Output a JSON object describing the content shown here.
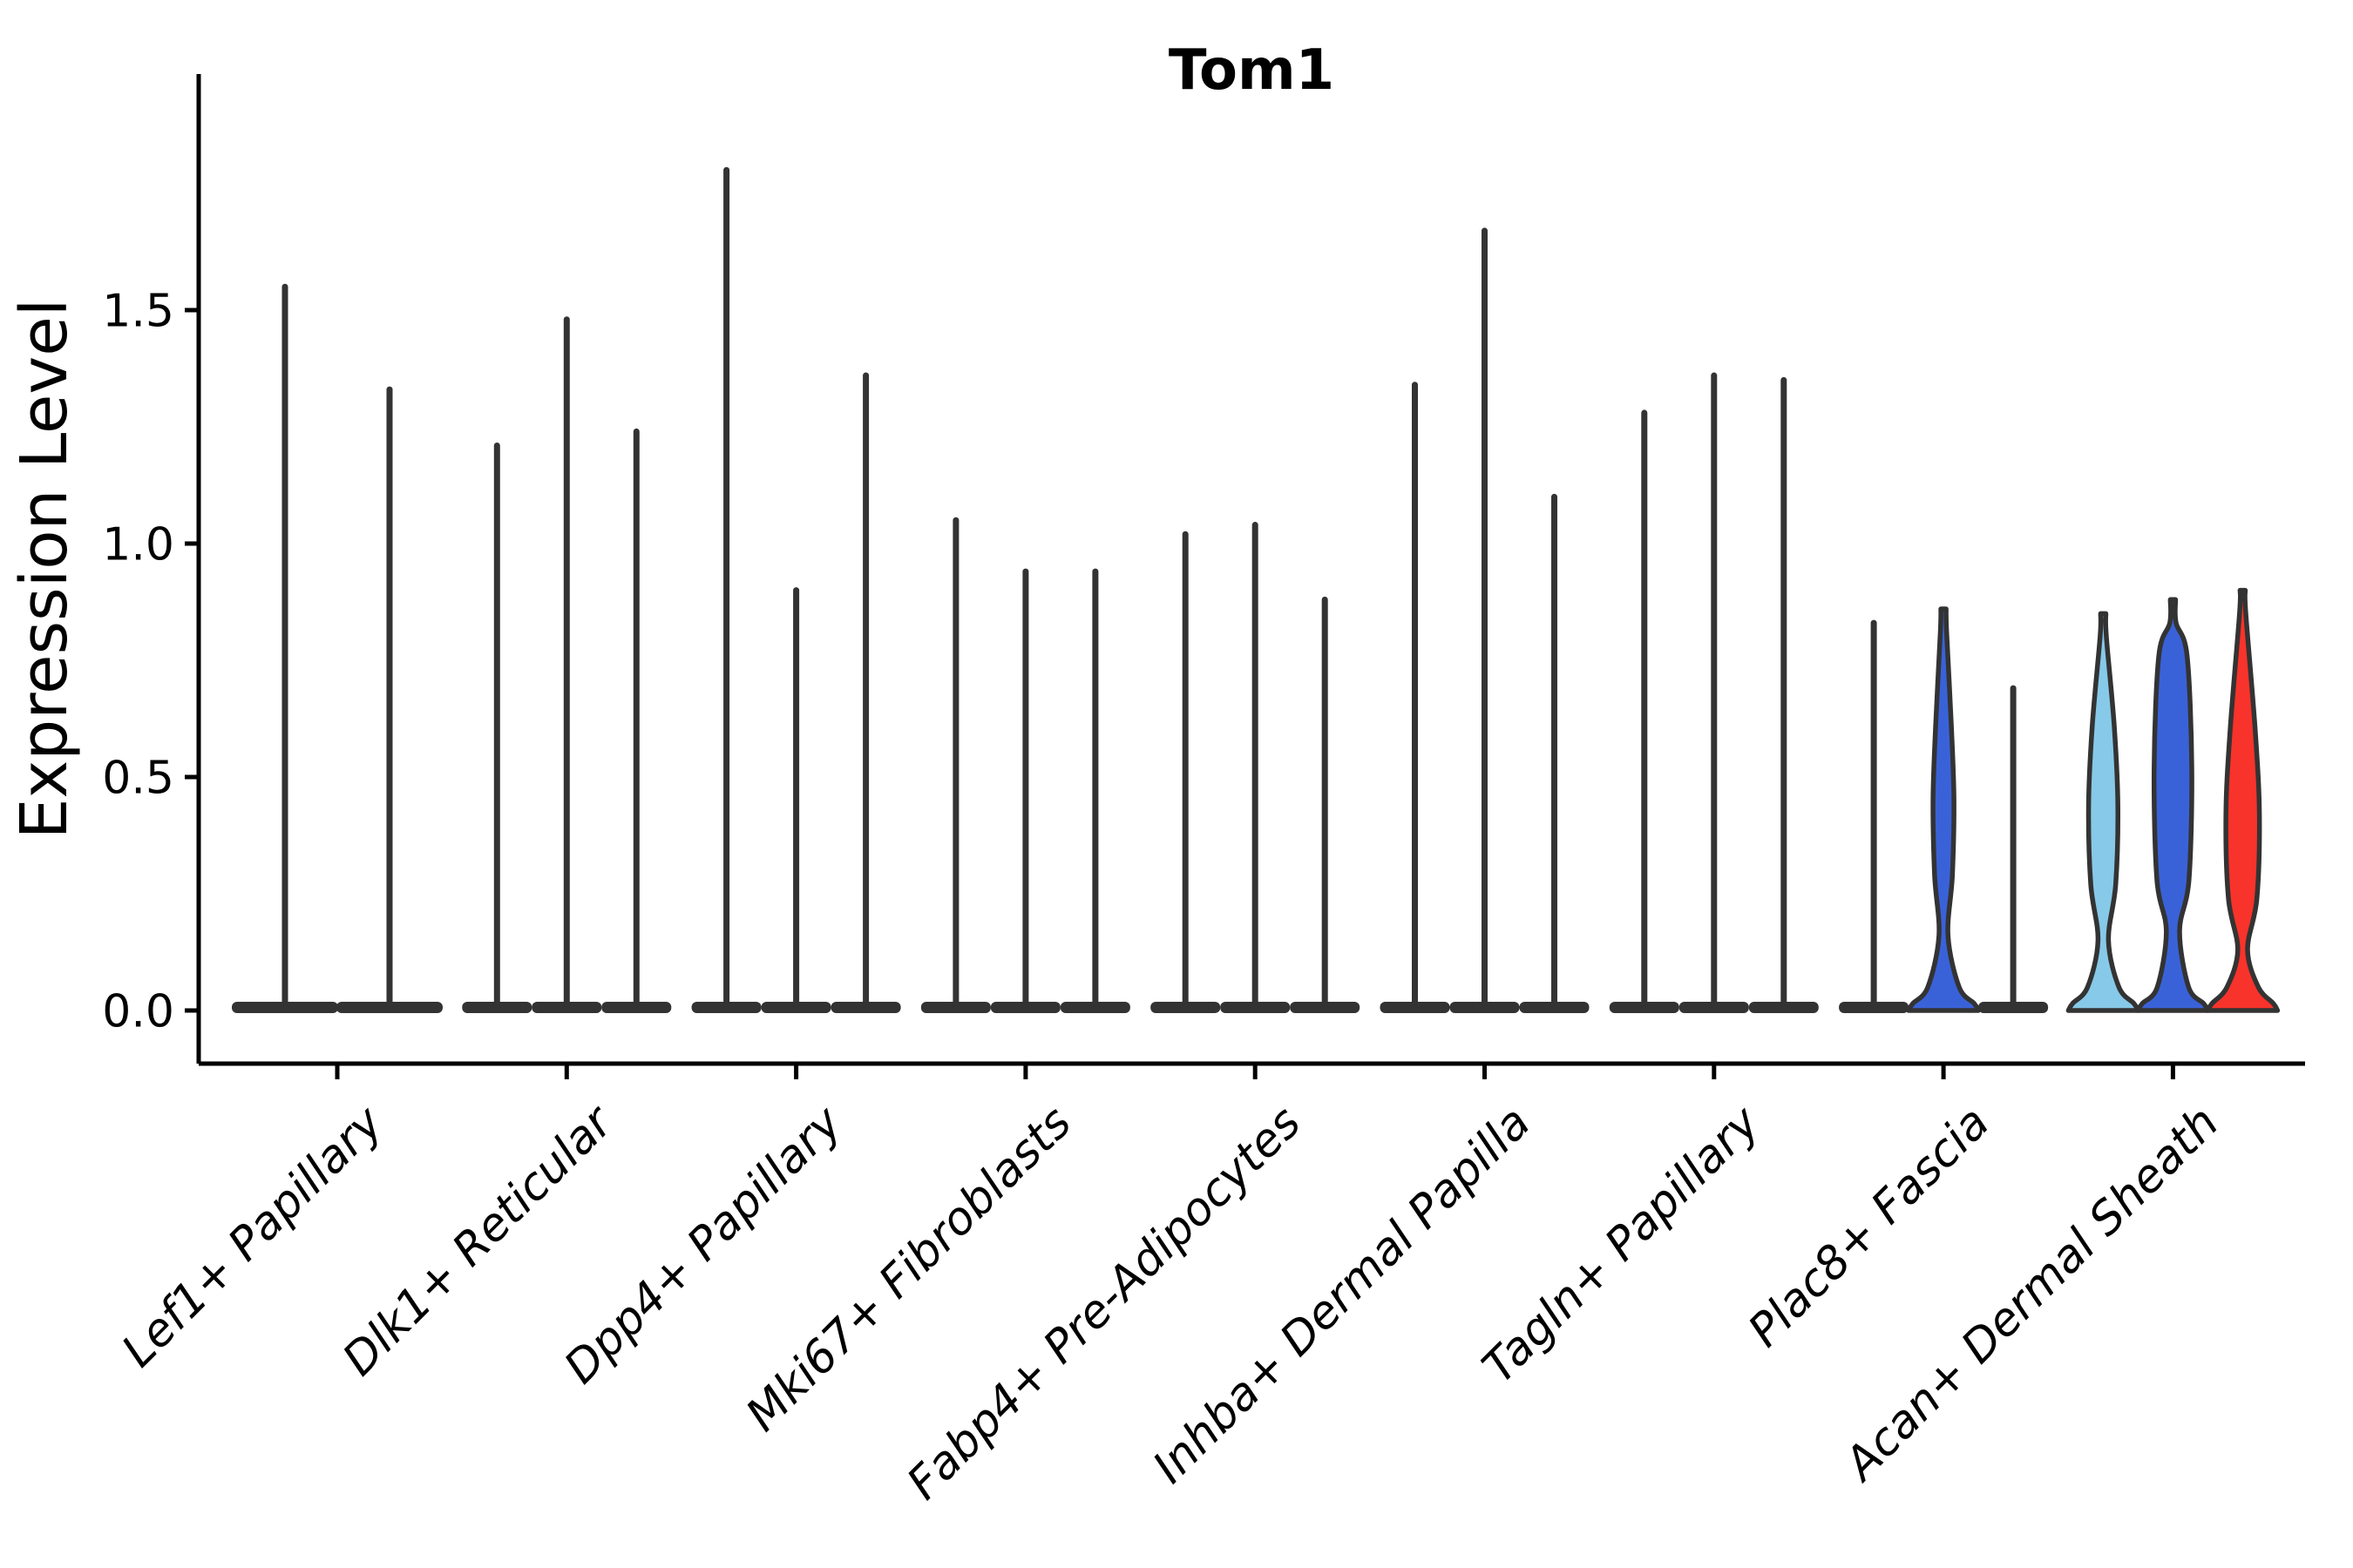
{
  "chart_data": {
    "type": "violin",
    "title": "Tom1",
    "ylabel": "Expression Level",
    "xlabel": "",
    "ylim": [
      -0.114,
      2.0
    ],
    "yticks": [
      0.0,
      0.5,
      1.0,
      1.5
    ],
    "ytick_labels": [
      "0.0",
      "0.5",
      "1.0",
      "1.5"
    ],
    "grid": "off",
    "legend": "none",
    "palette": {
      "outline": "#333333",
      "spike": "#333333",
      "lightblue": "#87C9E8",
      "blue": "#3A62D8",
      "red": "#F8332B",
      "axis": "#000000"
    },
    "groups": [
      {
        "label": "Lef1+ Papillary",
        "violins": [
          {
            "offset": -60,
            "half_width": 61,
            "max": 1.55,
            "style": "spike",
            "color": "spike"
          },
          {
            "offset": 60,
            "half_width": 61,
            "max": 1.33,
            "style": "spike",
            "color": "spike"
          }
        ]
      },
      {
        "label": "Dlk1+ Reticular",
        "violins": [
          {
            "offset": -80,
            "half_width": 40,
            "max": 1.21,
            "style": "spike",
            "color": "spike"
          },
          {
            "offset": 0,
            "half_width": 40,
            "max": 1.48,
            "style": "spike",
            "color": "spike"
          },
          {
            "offset": 80,
            "half_width": 40,
            "max": 1.24,
            "style": "spike",
            "color": "spike"
          }
        ]
      },
      {
        "label": "Dpp4+ Papillary",
        "violins": [
          {
            "offset": -80,
            "half_width": 40,
            "max": 1.8,
            "style": "spike",
            "color": "spike"
          },
          {
            "offset": 0,
            "half_width": 40,
            "max": 0.9,
            "style": "spike",
            "color": "spike"
          },
          {
            "offset": 80,
            "half_width": 40,
            "max": 1.36,
            "style": "spike",
            "color": "spike"
          }
        ]
      },
      {
        "label": "Mki67+ Fibroblasts",
        "violins": [
          {
            "offset": -80,
            "half_width": 40,
            "max": 1.05,
            "style": "spike",
            "color": "spike"
          },
          {
            "offset": 0,
            "half_width": 40,
            "max": 0.94,
            "style": "spike",
            "color": "spike"
          },
          {
            "offset": 80,
            "half_width": 40,
            "max": 0.94,
            "style": "spike",
            "color": "spike"
          }
        ]
      },
      {
        "label": "Fabp4+ Pre-Adipocytes",
        "violins": [
          {
            "offset": -80,
            "half_width": 40,
            "max": 1.02,
            "style": "spike",
            "color": "spike"
          },
          {
            "offset": 0,
            "half_width": 40,
            "max": 1.04,
            "style": "spike",
            "color": "spike"
          },
          {
            "offset": 80,
            "half_width": 40,
            "max": 0.88,
            "style": "spike",
            "color": "spike"
          }
        ]
      },
      {
        "label": "Inhba+ Dermal Papilla",
        "violins": [
          {
            "offset": -80,
            "half_width": 40,
            "max": 1.34,
            "style": "spike",
            "color": "spike"
          },
          {
            "offset": 0,
            "half_width": 40,
            "max": 1.67,
            "style": "spike",
            "color": "spike"
          },
          {
            "offset": 80,
            "half_width": 40,
            "max": 1.1,
            "style": "spike",
            "color": "spike"
          }
        ]
      },
      {
        "label": "Tagln+ Papillary",
        "violins": [
          {
            "offset": -80,
            "half_width": 40,
            "max": 1.28,
            "style": "spike",
            "color": "spike"
          },
          {
            "offset": 0,
            "half_width": 40,
            "max": 1.36,
            "style": "spike",
            "color": "spike"
          },
          {
            "offset": 80,
            "half_width": 40,
            "max": 1.35,
            "style": "spike",
            "color": "spike"
          }
        ]
      },
      {
        "label": "Plac8+ Fascia",
        "violins": [
          {
            "offset": -80,
            "half_width": 40,
            "max": 0.83,
            "style": "spike",
            "color": "spike"
          },
          {
            "offset": 0,
            "half_width": 40,
            "max": 0.86,
            "style": "filled",
            "color": "blue",
            "profile": {
              "pinch_v": 0.16,
              "pinch_w": 0.13,
              "bulge_v": 0.45,
              "bulge_w": 0.3,
              "span": 0.16
            }
          },
          {
            "offset": 80,
            "half_width": 40,
            "max": 0.69,
            "style": "spike",
            "color": "spike"
          }
        ]
      },
      {
        "label": "Acan+ Dermal Sheath",
        "violins": [
          {
            "offset": -80,
            "half_width": 40,
            "max": 0.85,
            "style": "filled",
            "color": "lightblue",
            "profile": {
              "pinch_v": 0.15,
              "pinch_w": 0.15,
              "bulge_v": 0.44,
              "bulge_w": 0.42,
              "span": 0.17
            }
          },
          {
            "offset": 0,
            "half_width": 40,
            "max": 0.88,
            "style": "filled",
            "color": "blue",
            "profile": {
              "pinch_v": 0.17,
              "pinch_w": 0.19,
              "bulge_v": 0.52,
              "bulge_w": 0.54,
              "span": 0.24
            }
          },
          {
            "offset": 80,
            "half_width": 40,
            "max": 0.9,
            "style": "filled",
            "color": "red",
            "profile": {
              "pinch_v": 0.13,
              "pinch_w": 0.14,
              "bulge_v": 0.42,
              "bulge_w": 0.48,
              "span": 0.18
            }
          }
        ]
      }
    ]
  }
}
